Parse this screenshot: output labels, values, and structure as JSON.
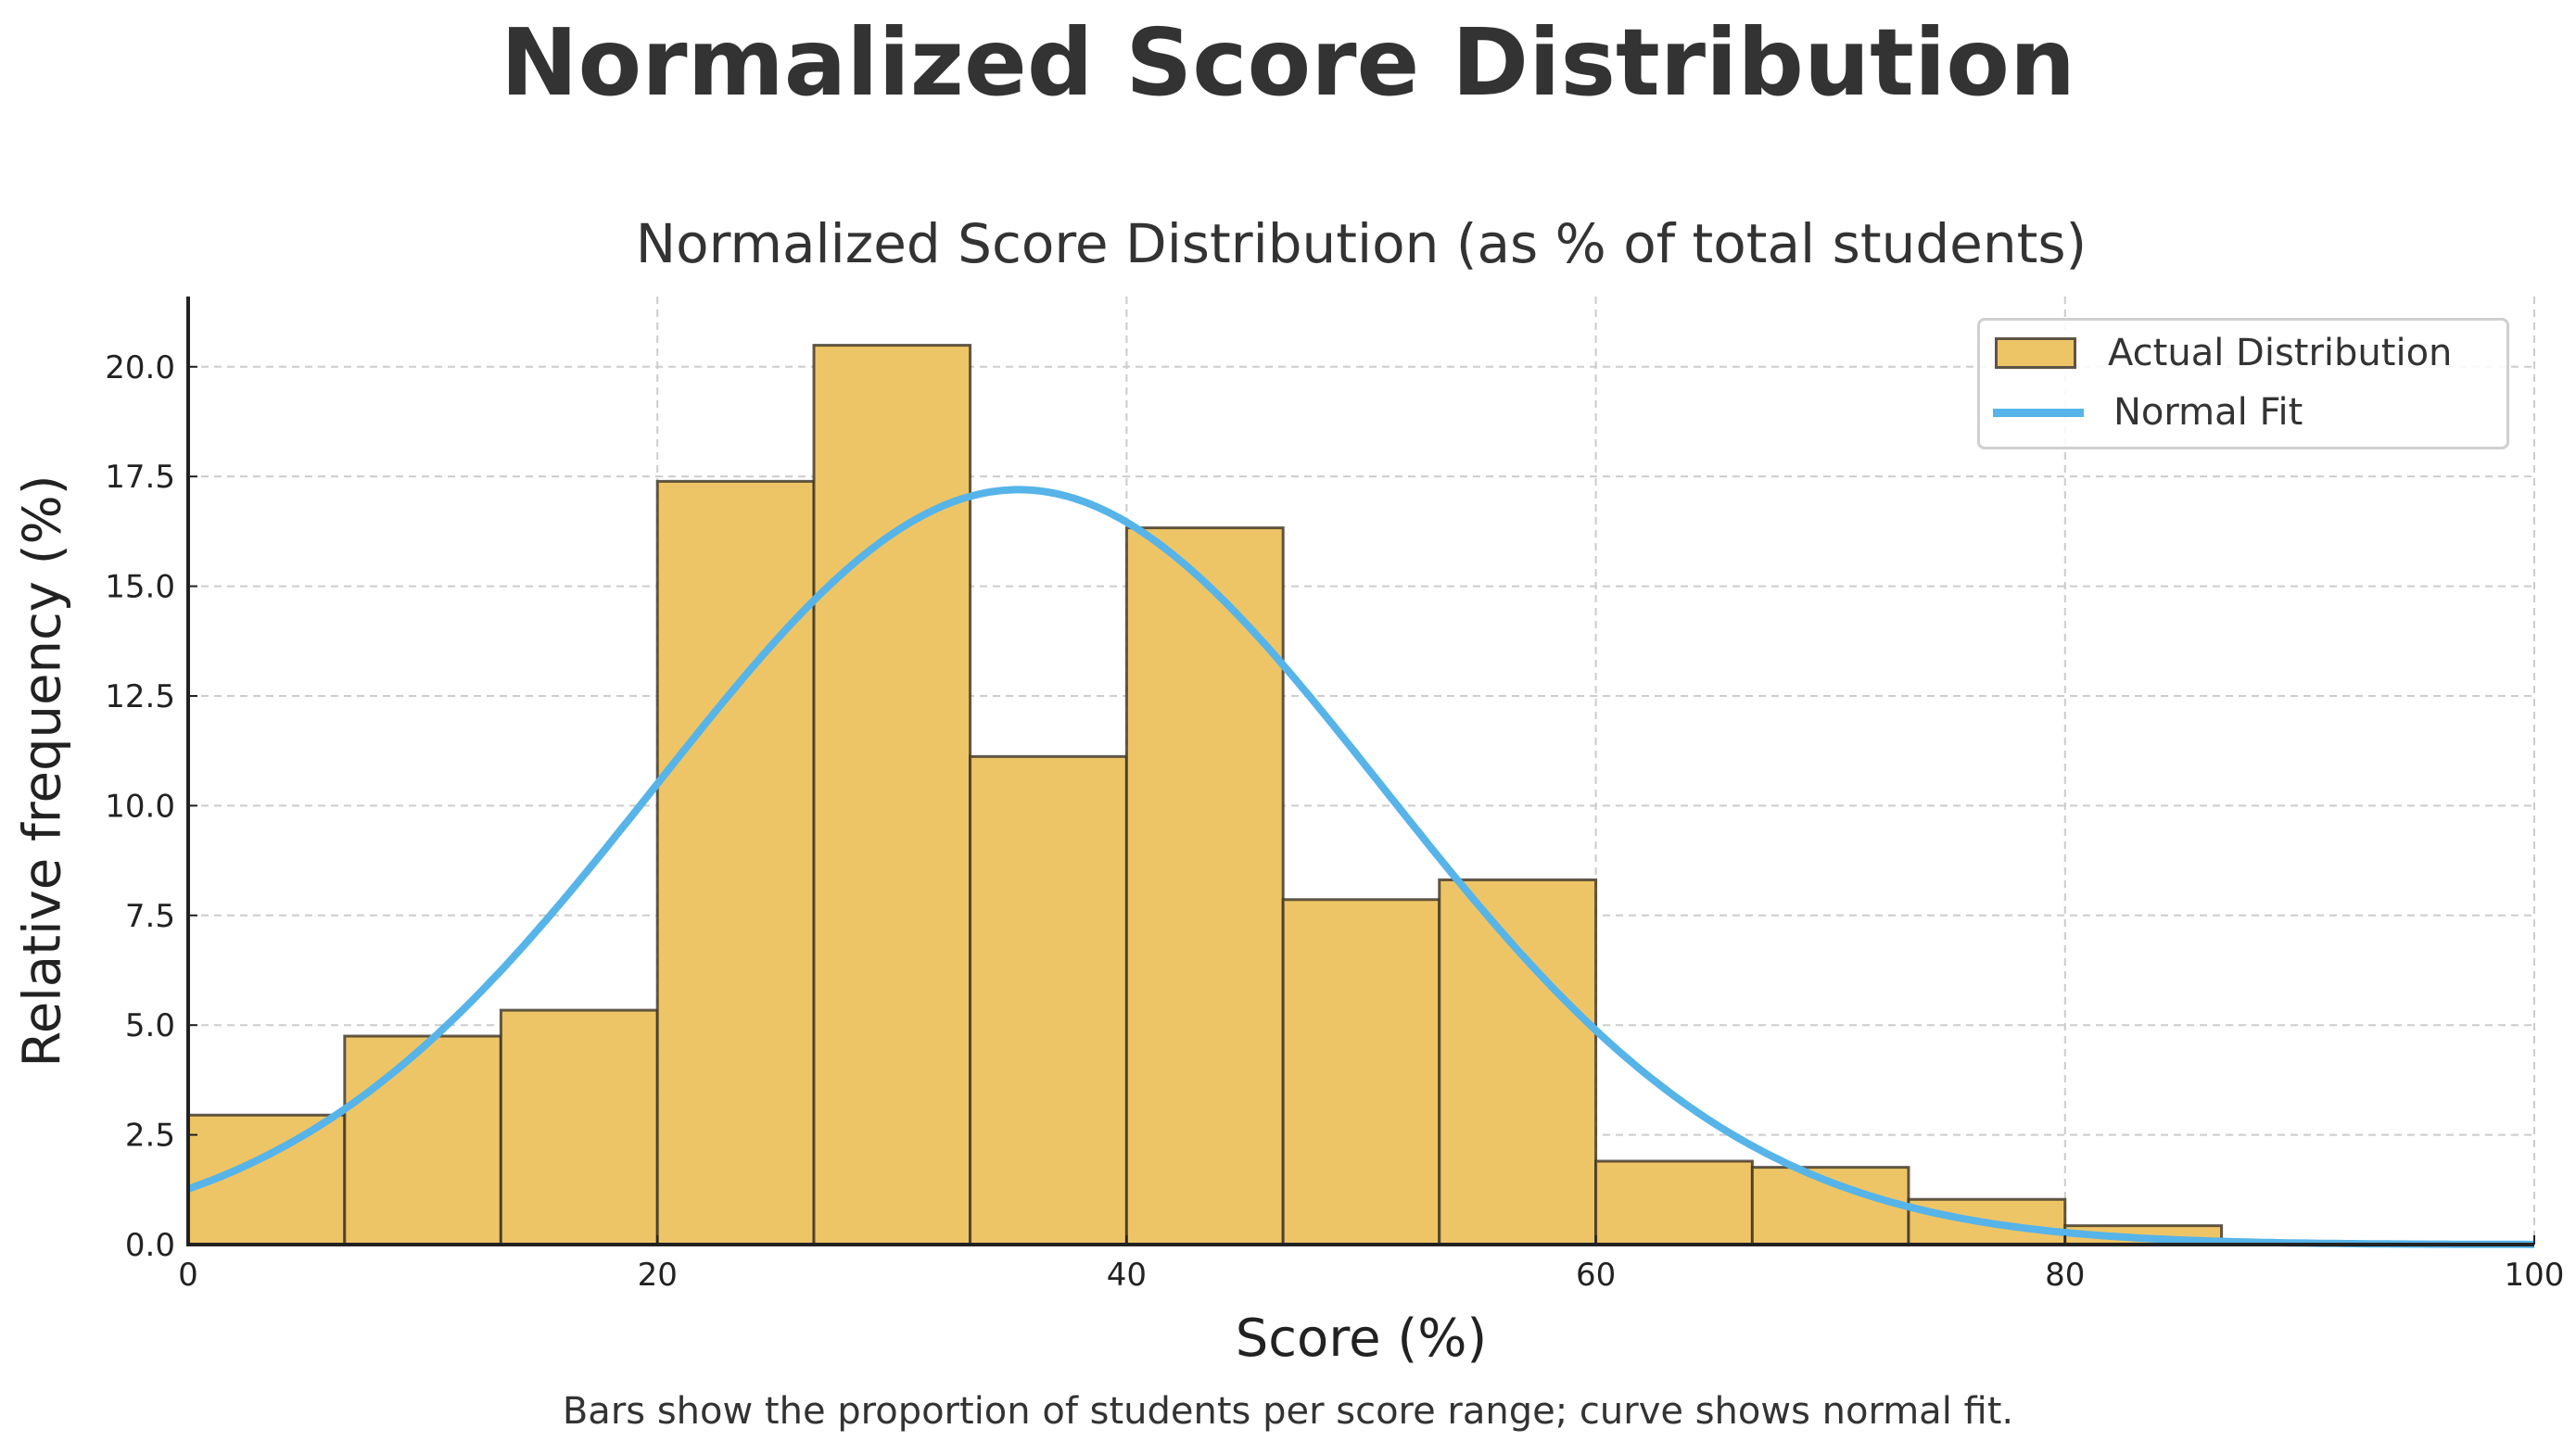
{
  "figure": {
    "suptitle": "Normalized Score Distribution",
    "caption": "Bars show the proportion of students per score range; curve shows normal fit."
  },
  "colors": {
    "bar_fill": "#EEC566",
    "bar_edge": "#3b3226",
    "curve": "#56B4E9",
    "grid": "#cccccc",
    "axis": "#222222",
    "text": "#333333"
  },
  "legend": {
    "items": [
      {
        "label": "Actual Distribution",
        "type": "bar"
      },
      {
        "label": "Normal Fit",
        "type": "line"
      }
    ]
  },
  "chart_data": {
    "type": "bar",
    "subtype": "histogram_with_normal_fit",
    "title": "Normalized Score Distribution (as % of total students)",
    "xlabel": "Score (%)",
    "ylabel": "Relative frequency (%)",
    "xlim": [
      0,
      100
    ],
    "ylim": [
      0,
      21.6
    ],
    "xticks": [
      0,
      20,
      40,
      60,
      80,
      100
    ],
    "yticks": [
      0.0,
      2.5,
      5.0,
      7.5,
      10.0,
      12.5,
      15.0,
      17.5,
      20.0
    ],
    "ytick_labels": [
      "0.0",
      "2.5",
      "5.0",
      "7.5",
      "10.0",
      "12.5",
      "15.0",
      "17.5",
      "20.0"
    ],
    "grid": true,
    "legend_position": "upper right",
    "bin_edges": [
      0,
      6.67,
      13.33,
      20,
      26.67,
      33.33,
      40,
      46.67,
      53.33,
      60,
      66.67,
      73.33,
      80,
      86.67
    ],
    "series": [
      {
        "name": "Actual Distribution",
        "type": "bar",
        "values": [
          2.95,
          4.75,
          5.34,
          17.39,
          20.49,
          11.12,
          16.33,
          7.86,
          8.31,
          1.9,
          1.76,
          1.03,
          0.43
        ]
      },
      {
        "name": "Normal Fit",
        "type": "line",
        "mean": 35.4,
        "std": 15.5,
        "peak": 17.2,
        "x": [
          0,
          10,
          20,
          30,
          35.4,
          40,
          50,
          60,
          70,
          80,
          90,
          100
        ],
        "values": [
          1.25,
          3.8,
          10.4,
          16.1,
          17.2,
          16.5,
          11.5,
          4.9,
          1.5,
          0.3,
          0.05,
          0.0
        ]
      }
    ]
  }
}
